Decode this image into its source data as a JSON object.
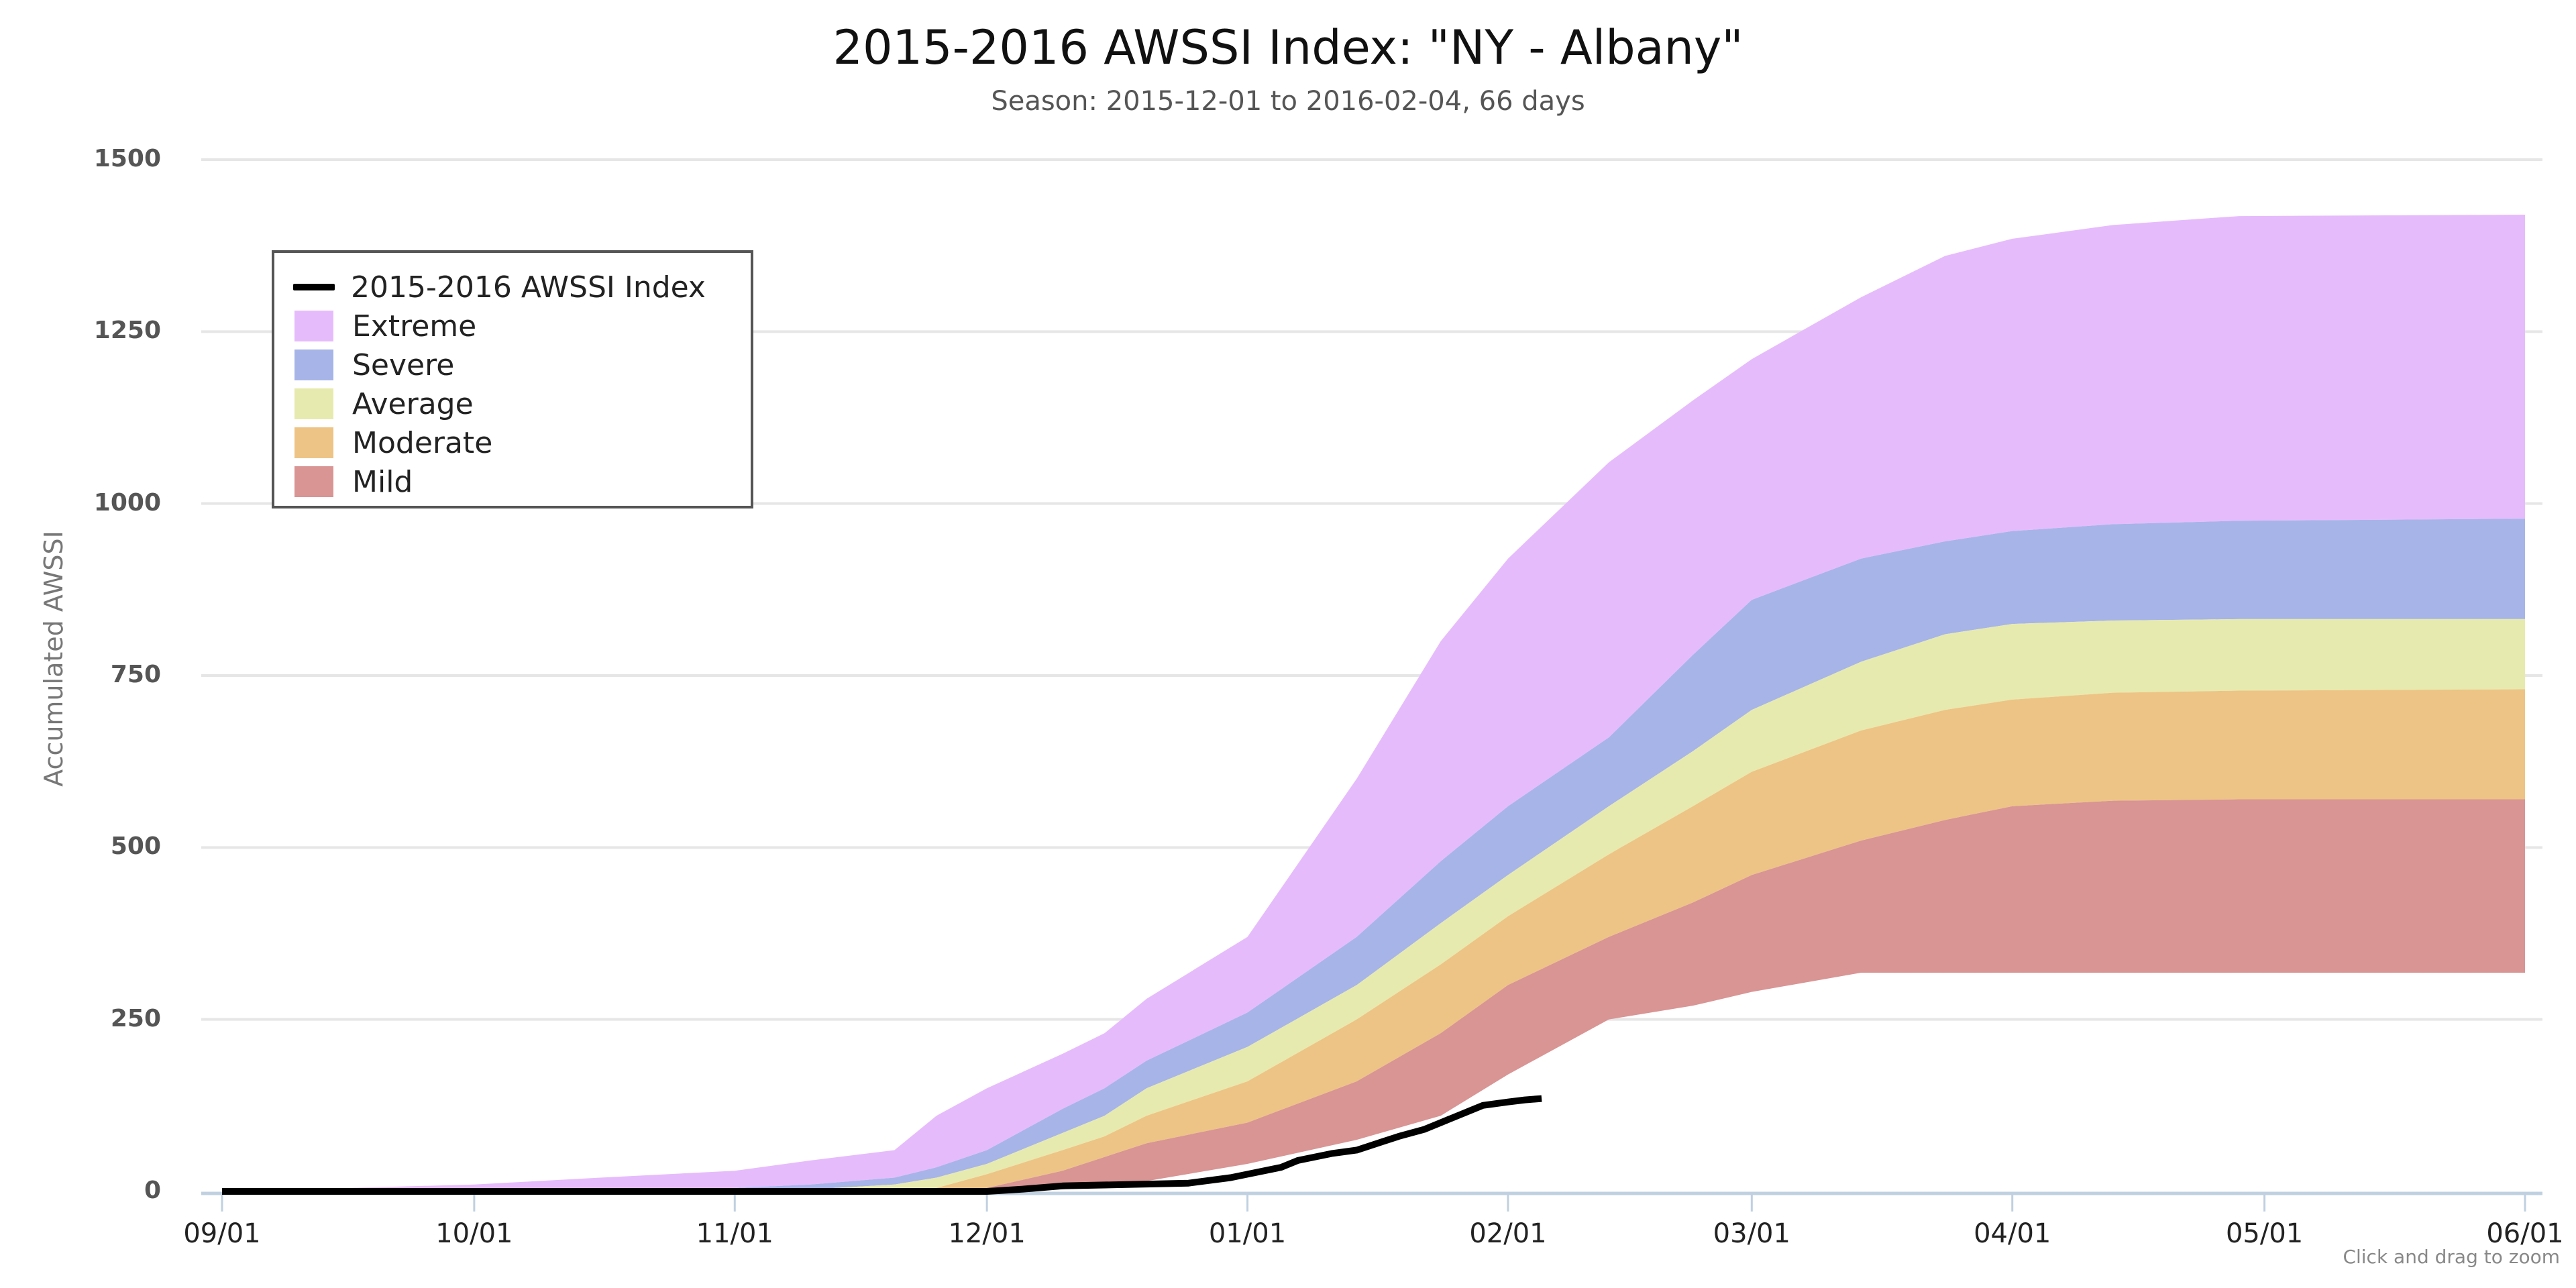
{
  "title": "2015-2016 AWSSI Index: \"NY - Albany\"",
  "subtitle": "Season: 2015-12-01 to 2016-02-04, 66 days",
  "zoom_hint": "Click and drag to zoom",
  "colors": {
    "extreme": "#e6bbfc",
    "severe": "#a7b4e8",
    "average": "#e7eaae",
    "moderate": "#edc485",
    "mild": "#d99494",
    "index_line": "#000000",
    "gridline": "#e6e6e6",
    "axis": "#c0d0e0"
  },
  "legend": [
    {
      "label": "2015-2016 AWSSI Index",
      "type": "line",
      "key": "index_line"
    },
    {
      "label": "Extreme",
      "type": "area",
      "key": "extreme"
    },
    {
      "label": "Severe",
      "type": "area",
      "key": "severe"
    },
    {
      "label": "Average",
      "type": "area",
      "key": "average"
    },
    {
      "label": "Moderate",
      "type": "area",
      "key": "moderate"
    },
    {
      "label": "Mild",
      "type": "area",
      "key": "mild"
    }
  ],
  "chart_data": {
    "type": "area",
    "title": "2015-2016 AWSSI Index: \"NY - Albany\"",
    "subtitle": "Season: 2015-12-01 to 2016-02-04, 66 days",
    "xlabel": "",
    "ylabel": "Accumulated AWSSI",
    "ylim": [
      0,
      1500
    ],
    "yticks": [
      0,
      250,
      500,
      750,
      1000,
      1250,
      1500
    ],
    "xticks": [
      {
        "label": "09/01",
        "day": 0
      },
      {
        "label": "10/01",
        "day": 30
      },
      {
        "label": "11/01",
        "day": 61
      },
      {
        "label": "12/01",
        "day": 91
      },
      {
        "label": "01/01",
        "day": 122
      },
      {
        "label": "02/01",
        "day": 153
      },
      {
        "label": "03/01",
        "day": 182
      },
      {
        "label": "04/01",
        "day": 213
      },
      {
        "label": "05/01",
        "day": 243
      },
      {
        "label": "06/01",
        "day": 274
      }
    ],
    "x_unit": "days since 09/01",
    "grid": true,
    "legend_position": "upper-left inside",
    "bands": {
      "x": [
        0,
        30,
        45,
        61,
        70,
        80,
        85,
        91,
        100,
        105,
        110,
        122,
        135,
        145,
        153,
        165,
        175,
        182,
        195,
        205,
        213,
        225,
        240,
        274
      ],
      "mild_bottom": [
        0,
        0,
        0,
        0,
        0,
        0,
        0,
        0,
        3,
        8,
        15,
        40,
        75,
        110,
        170,
        250,
        270,
        290,
        318,
        318,
        318,
        318,
        318,
        318
      ],
      "mild_top": [
        0,
        0,
        0,
        0,
        0,
        0,
        2,
        5,
        30,
        50,
        70,
        100,
        160,
        230,
        300,
        370,
        420,
        460,
        510,
        540,
        560,
        568,
        570,
        570
      ],
      "moderate_top": [
        0,
        0,
        0,
        0,
        0,
        2,
        5,
        25,
        60,
        80,
        110,
        160,
        250,
        330,
        400,
        490,
        560,
        610,
        670,
        700,
        715,
        725,
        728,
        730
      ],
      "average_top": [
        0,
        0,
        0,
        0,
        3,
        10,
        20,
        40,
        85,
        110,
        150,
        210,
        300,
        390,
        460,
        560,
        640,
        700,
        770,
        810,
        825,
        830,
        832,
        832
      ],
      "severe_top": [
        0,
        0,
        0,
        5,
        10,
        20,
        35,
        60,
        120,
        150,
        190,
        260,
        370,
        480,
        560,
        660,
        780,
        860,
        920,
        945,
        960,
        970,
        975,
        978
      ],
      "extreme_top": [
        0,
        10,
        20,
        30,
        45,
        60,
        110,
        150,
        200,
        230,
        280,
        370,
        600,
        800,
        920,
        1060,
        1150,
        1210,
        1300,
        1360,
        1385,
        1405,
        1418,
        1420
      ]
    },
    "series": [
      {
        "name": "2015-2016 AWSSI Index",
        "x": [
          0,
          91,
          95,
          100,
          115,
          120,
          122,
          126,
          128,
          132,
          135,
          138,
          140,
          143,
          145,
          148,
          150,
          153,
          155,
          157
        ],
        "values": [
          0,
          0,
          3,
          8,
          12,
          20,
          25,
          35,
          45,
          55,
          60,
          72,
          80,
          90,
          100,
          115,
          125,
          130,
          133,
          135
        ]
      }
    ]
  }
}
